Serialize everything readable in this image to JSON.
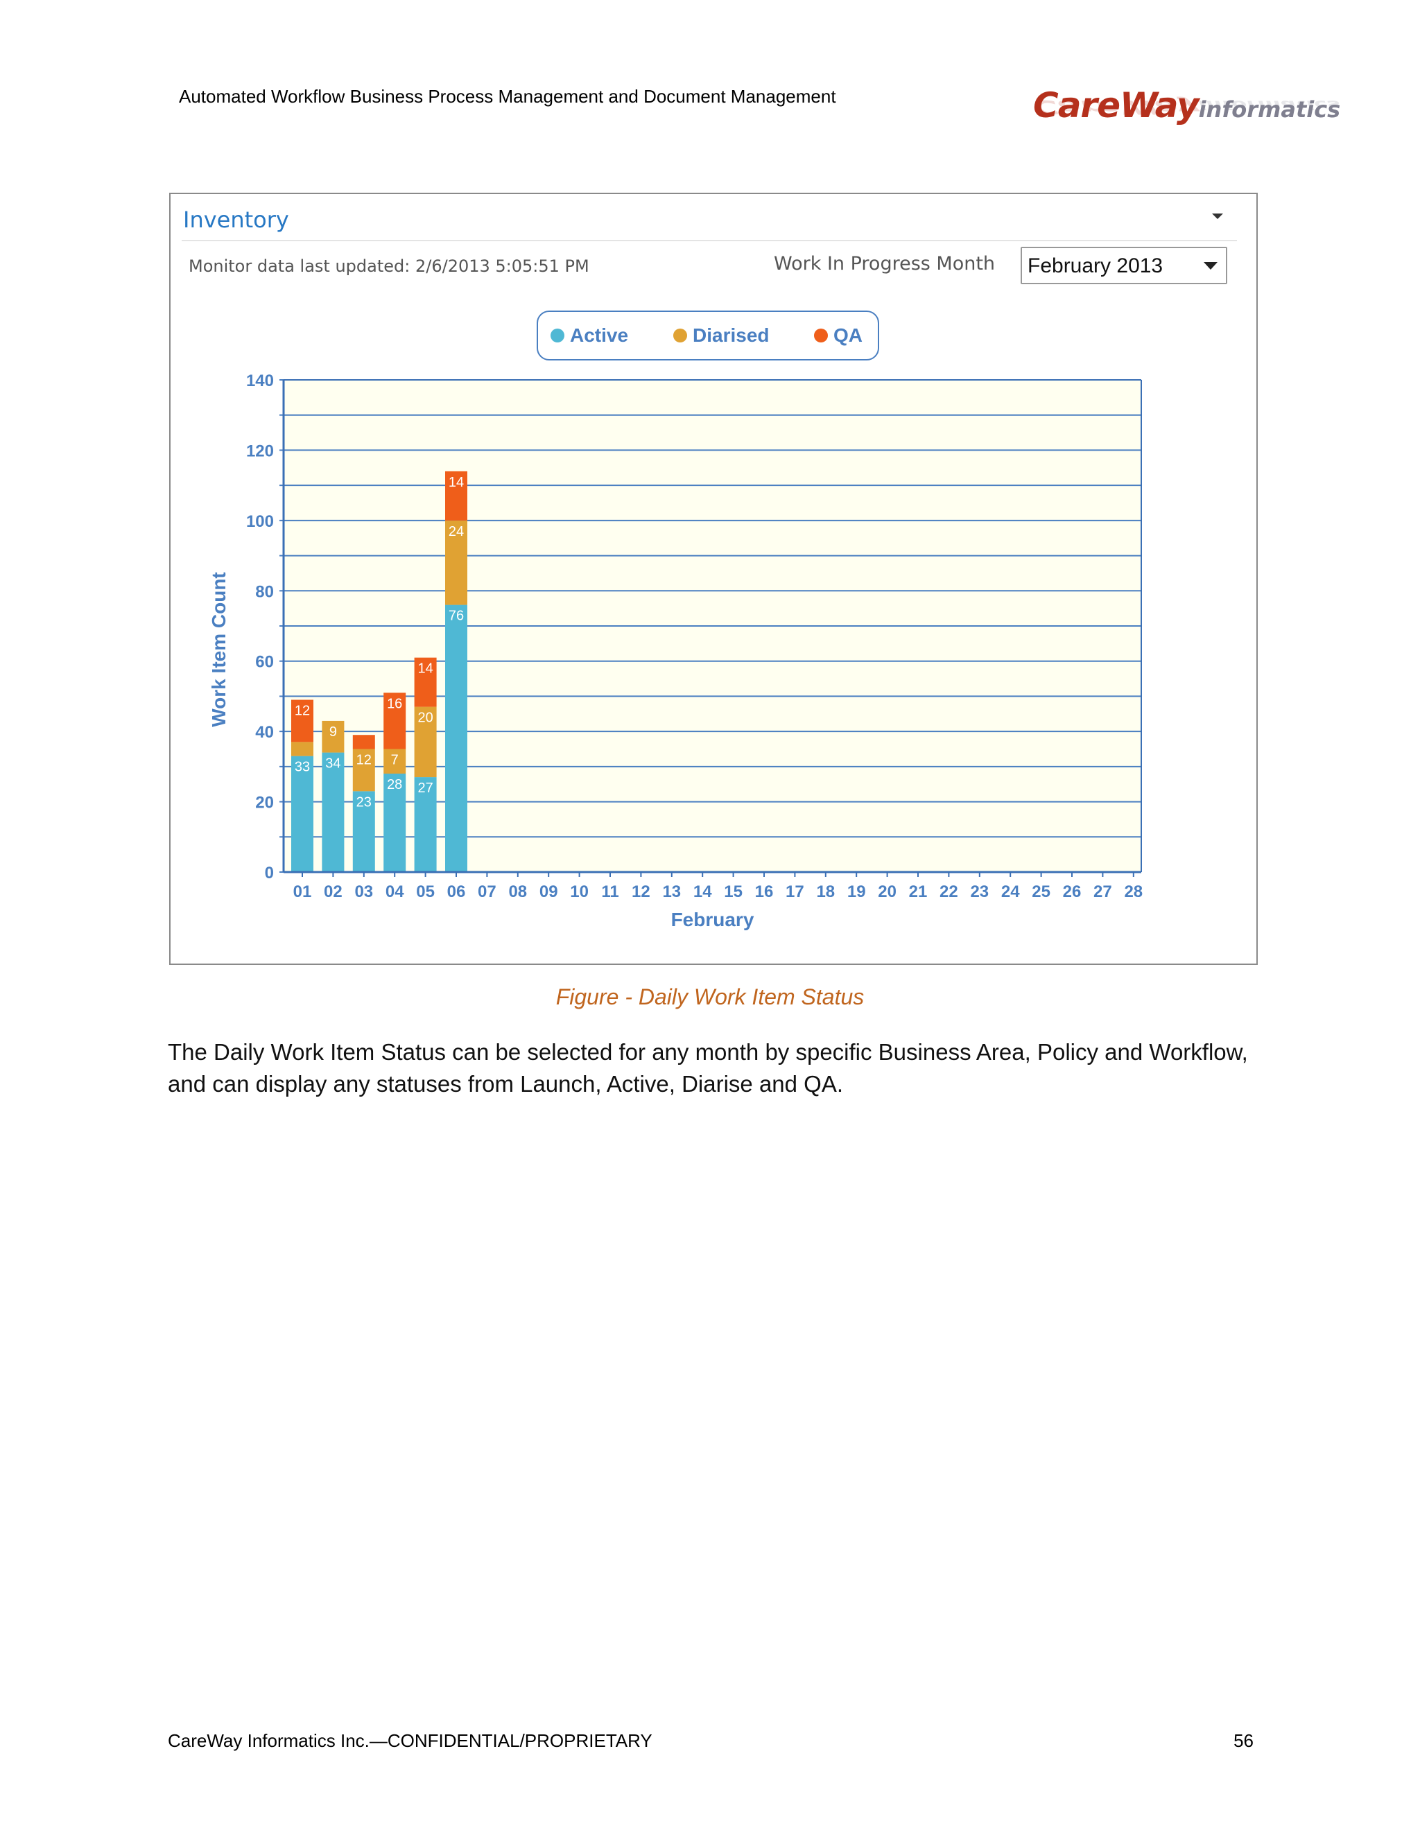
{
  "header": {
    "title": "Automated Workflow Business Process Management and Document Management",
    "logo_main": "CareWay",
    "logo_sub": "informatics"
  },
  "panel": {
    "title": "Inventory",
    "monitor_text": "Monitor data last updated: 2/6/2013 5:05:51 PM",
    "wip_label": "Work In Progress Month",
    "month_value": "February 2013"
  },
  "chart_data": {
    "type": "bar",
    "stacked": true,
    "xlabel": "February",
    "ylabel": "Work Item Count",
    "ylim": [
      0,
      140
    ],
    "yticks": [
      0,
      20,
      40,
      60,
      80,
      100,
      120,
      140
    ],
    "grid": true,
    "legend_position": "top-center",
    "categories": [
      "01",
      "02",
      "03",
      "04",
      "05",
      "06",
      "07",
      "08",
      "09",
      "10",
      "11",
      "12",
      "13",
      "14",
      "15",
      "16",
      "17",
      "18",
      "19",
      "20",
      "21",
      "22",
      "23",
      "24",
      "25",
      "26",
      "27",
      "28"
    ],
    "series": [
      {
        "name": "Active",
        "color": "#4fb8d4",
        "values": [
          33,
          34,
          23,
          28,
          27,
          76,
          0,
          0,
          0,
          0,
          0,
          0,
          0,
          0,
          0,
          0,
          0,
          0,
          0,
          0,
          0,
          0,
          0,
          0,
          0,
          0,
          0,
          0
        ]
      },
      {
        "name": "Diarised",
        "color": "#e0a233",
        "values": [
          4,
          9,
          12,
          7,
          20,
          24,
          0,
          0,
          0,
          0,
          0,
          0,
          0,
          0,
          0,
          0,
          0,
          0,
          0,
          0,
          0,
          0,
          0,
          0,
          0,
          0,
          0,
          0
        ]
      },
      {
        "name": "QA",
        "color": "#ef5e1a",
        "values": [
          12,
          0,
          4,
          16,
          14,
          14,
          0,
          0,
          0,
          0,
          0,
          0,
          0,
          0,
          0,
          0,
          0,
          0,
          0,
          0,
          0,
          0,
          0,
          0,
          0,
          0,
          0,
          0
        ]
      }
    ],
    "labels": [
      {
        "series": 0,
        "index": 0,
        "text": "33"
      },
      {
        "series": 0,
        "index": 1,
        "text": "34"
      },
      {
        "series": 0,
        "index": 2,
        "text": "23"
      },
      {
        "series": 0,
        "index": 3,
        "text": "28"
      },
      {
        "series": 0,
        "index": 4,
        "text": "27"
      },
      {
        "series": 0,
        "index": 5,
        "text": "76"
      },
      {
        "series": 1,
        "index": 1,
        "text": "9"
      },
      {
        "series": 1,
        "index": 2,
        "text": "12"
      },
      {
        "series": 1,
        "index": 3,
        "text": "7"
      },
      {
        "series": 1,
        "index": 4,
        "text": "20"
      },
      {
        "series": 1,
        "index": 5,
        "text": "24"
      },
      {
        "series": 2,
        "index": 0,
        "text": "12"
      },
      {
        "series": 2,
        "index": 3,
        "text": "16"
      },
      {
        "series": 2,
        "index": 4,
        "text": "14"
      },
      {
        "series": 2,
        "index": 5,
        "text": "14"
      }
    ]
  },
  "caption": "Figure  - Daily Work Item Status",
  "body_text": "The Daily Work Item Status can be selected for any month by specific Business Area, Policy and Workflow, and can display any statuses from Launch, Active, Diarise and QA.",
  "footer": {
    "left": "CareWay Informatics Inc.—CONFIDENTIAL/PROPRIETARY",
    "page_number": "56"
  }
}
